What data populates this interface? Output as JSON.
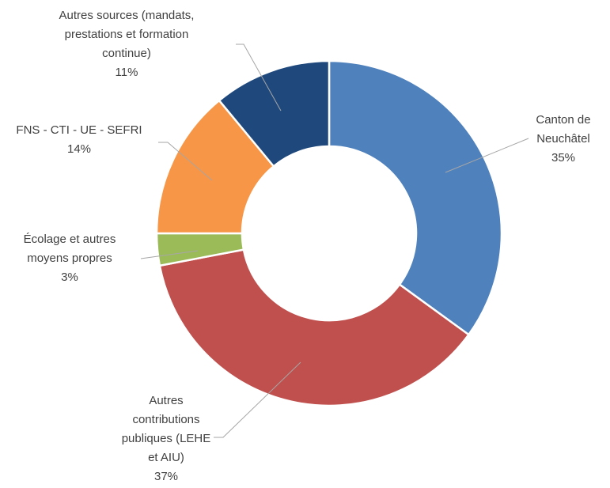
{
  "chart_data": {
    "type": "donut",
    "categories": [
      "Canton de Neuchâtel",
      "Autres contributions publiques (LEHE et AIU)",
      "Écolage et autres moyens propres",
      "FNS - CTI - UE - SEFRI",
      "Autres sources (mandats, prestations et formation continue)"
    ],
    "values": [
      35,
      37,
      3,
      14,
      11
    ],
    "value_labels": [
      "35%",
      "37%",
      "3%",
      "14%",
      "11%"
    ],
    "colors": [
      "#4f81bd",
      "#c0504d",
      "#9bbb59",
      "#f79646",
      "#1f497d"
    ]
  }
}
